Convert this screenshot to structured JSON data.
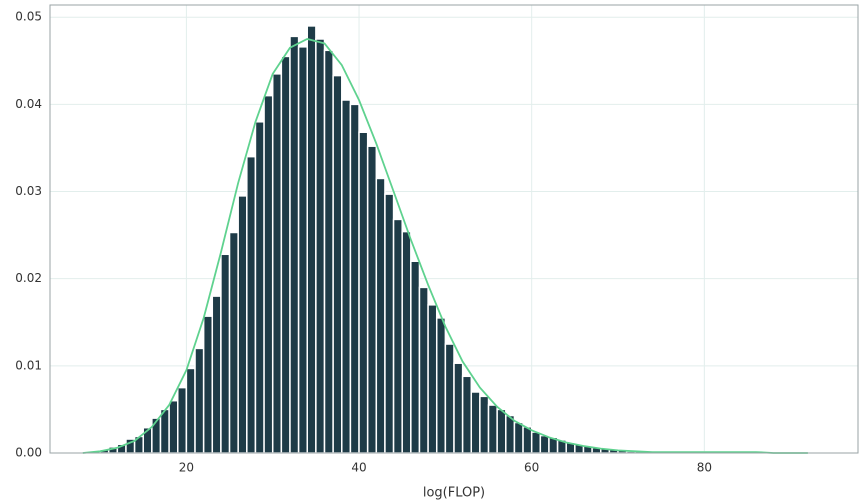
{
  "chart_data": {
    "type": "histogram",
    "xlabel": "log(FLOP)",
    "bins": [
      9,
      10,
      11,
      12,
      13,
      14,
      15,
      16,
      17,
      18,
      19,
      20,
      21,
      22,
      23,
      24,
      25,
      26,
      27,
      28,
      29,
      30,
      31,
      32,
      33,
      34,
      35,
      36,
      37,
      38,
      39,
      40,
      41,
      42,
      43,
      44,
      45,
      46,
      47,
      48,
      49,
      50,
      51,
      52,
      53,
      54,
      55,
      56,
      57,
      58,
      59,
      60,
      61,
      62,
      63,
      64,
      65,
      66,
      67,
      68,
      69,
      70,
      71,
      72,
      73,
      74,
      75,
      76,
      77,
      78,
      79,
      80,
      81,
      82,
      83,
      84,
      85,
      86,
      87,
      88,
      89,
      90,
      91,
      92,
      93
    ],
    "counts": [
      0.0002,
      0.0004,
      0.0007,
      0.001,
      0.0016,
      0.0019,
      0.0029,
      0.004,
      0.005,
      0.006,
      0.0075,
      0.0097,
      0.012,
      0.0157,
      0.018,
      0.0228,
      0.0253,
      0.0295,
      0.034,
      0.038,
      0.041,
      0.0435,
      0.0455,
      0.0478,
      0.0466,
      0.049,
      0.0475,
      0.0462,
      0.0433,
      0.0405,
      0.04,
      0.0368,
      0.0352,
      0.0315,
      0.0297,
      0.0268,
      0.0254,
      0.022,
      0.019,
      0.017,
      0.0155,
      0.0125,
      0.0103,
      0.0088,
      0.007,
      0.0065,
      0.0055,
      0.005,
      0.0043,
      0.0035,
      0.003,
      0.0024,
      0.002,
      0.0018,
      0.0015,
      0.0012,
      0.001,
      0.0008,
      0.0006,
      0.0005,
      0.0004,
      0.0003,
      0.0002,
      0.0002,
      0.0002,
      0.0002,
      0.0001,
      0.0001,
      0.0001,
      0.0001,
      0.0001,
      0.0001,
      0.0001,
      0.0001,
      0.0001,
      0.0001,
      0.0001,
      0.0001,
      0.0001,
      0.0001,
      0.0001,
      0.0001,
      0.0001,
      0.0001
    ],
    "color": "#1e3b47",
    "curve": {
      "color": "#5fd28f",
      "x": [
        8,
        10,
        12,
        14,
        16,
        18,
        20,
        22,
        24,
        26,
        28,
        30,
        32,
        34,
        36,
        38,
        40,
        42,
        44,
        46,
        48,
        50,
        52,
        54,
        56,
        58,
        60,
        62,
        64,
        66,
        68,
        70,
        72,
        74,
        76,
        78,
        80,
        82,
        84,
        86,
        88,
        90,
        92
      ],
      "values": [
        0,
        0.0002,
        0.0006,
        0.0014,
        0.003,
        0.0055,
        0.0095,
        0.0155,
        0.023,
        0.031,
        0.038,
        0.0435,
        0.0465,
        0.0475,
        0.047,
        0.0445,
        0.0405,
        0.0355,
        0.03,
        0.0245,
        0.0193,
        0.0145,
        0.0105,
        0.0075,
        0.0053,
        0.0037,
        0.0026,
        0.0018,
        0.0012,
        0.0008,
        0.0005,
        0.0003,
        0.0002,
        0.0001,
        0.0001,
        0.0001,
        0.0001,
        0.0001,
        0.0001,
        0.0001,
        0,
        0,
        0
      ]
    },
    "xlim": [
      4.2,
      97.8
    ],
    "ylim": [
      0,
      0.0514
    ],
    "xticks": [
      20,
      40,
      60,
      80
    ],
    "yticks": [
      {
        "value": 0,
        "label": "0.00"
      },
      {
        "value": 0.01,
        "label": "0.01"
      },
      {
        "value": 0.02,
        "label": "0.02"
      },
      {
        "value": 0.03,
        "label": "0.03"
      },
      {
        "value": 0.04,
        "label": "0.04"
      },
      {
        "value": 0.05,
        "label": "0.05"
      }
    ],
    "grid": true
  }
}
